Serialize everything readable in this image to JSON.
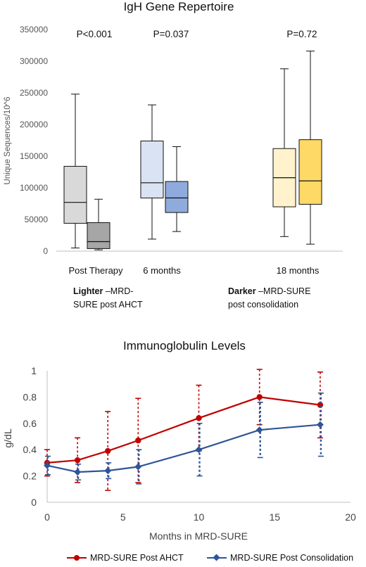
{
  "chart_data": [
    {
      "type": "box",
      "title": "IgH Gene Repertoire",
      "ylabel": "Unique Sequences/10^6",
      "ylim": [
        0,
        350000
      ],
      "yticks": [
        0,
        50000,
        100000,
        150000,
        200000,
        250000,
        300000,
        350000
      ],
      "categories": [
        "Post Therapy",
        "6 months",
        "18 months"
      ],
      "p_values": [
        "P<0.001",
        "P=0.037",
        "P=0.72"
      ],
      "legend_notes": [
        {
          "bold": "Lighter",
          "text": " –MRD-",
          "line2": "SURE post AHCT"
        },
        {
          "bold": "Darker",
          "text": " –MRD-SURE",
          "line2": "post consolidation"
        }
      ],
      "boxes": [
        {
          "category": "Post Therapy",
          "group": "Lighter",
          "min": 5000,
          "q1": 44000,
          "median": 77000,
          "q3": 134000,
          "max": 248000,
          "fill": "#d9d9d9"
        },
        {
          "category": "Post Therapy",
          "group": "Darker",
          "min": 2000,
          "q1": 4000,
          "median": 15000,
          "q3": 45000,
          "max": 82000,
          "fill": "#a6a6a6"
        },
        {
          "category": "6 months",
          "group": "Lighter",
          "min": 19000,
          "q1": 84000,
          "median": 108000,
          "q3": 174000,
          "max": 231000,
          "fill": "#dae3f3"
        },
        {
          "category": "6 months",
          "group": "Darker",
          "min": 31000,
          "q1": 61000,
          "median": 84000,
          "q3": 110000,
          "max": 165000,
          "fill": "#8faadc"
        },
        {
          "category": "18 months",
          "group": "Lighter",
          "min": 23000,
          "q1": 70000,
          "median": 116000,
          "q3": 162000,
          "max": 288000,
          "fill": "#fff2cc"
        },
        {
          "category": "18 months",
          "group": "Darker",
          "min": 11000,
          "q1": 74000,
          "median": 111000,
          "q3": 176000,
          "max": 316000,
          "fill": "#ffd966"
        }
      ]
    },
    {
      "type": "line",
      "title": "Immunoglobulin Levels",
      "xlabel": "Months in MRD-SURE",
      "ylabel": "g/dL",
      "xlim": [
        0,
        20
      ],
      "ylim": [
        0,
        1
      ],
      "xticks": [
        0,
        5,
        10,
        15,
        20
      ],
      "yticks": [
        0,
        0.2,
        0.4,
        0.6,
        0.8,
        1
      ],
      "series": [
        {
          "name": "MRD-SURE Post AHCT",
          "color": "#c00000",
          "x": [
            0,
            2,
            4,
            6,
            10,
            14,
            18
          ],
          "y": [
            0.3,
            0.32,
            0.39,
            0.47,
            0.64,
            0.8,
            0.74
          ],
          "err": [
            0.1,
            0.17,
            0.3,
            0.32,
            0.25,
            0.21,
            0.25
          ]
        },
        {
          "name": "MRD-SURE Post Consolidation",
          "color": "#2e5597",
          "x": [
            0,
            2,
            4,
            6,
            10,
            14,
            18
          ],
          "y": [
            0.28,
            0.23,
            0.24,
            0.27,
            0.4,
            0.55,
            0.59
          ],
          "err": [
            0.07,
            0.06,
            0.06,
            0.13,
            0.2,
            0.21,
            0.24
          ]
        }
      ]
    }
  ]
}
